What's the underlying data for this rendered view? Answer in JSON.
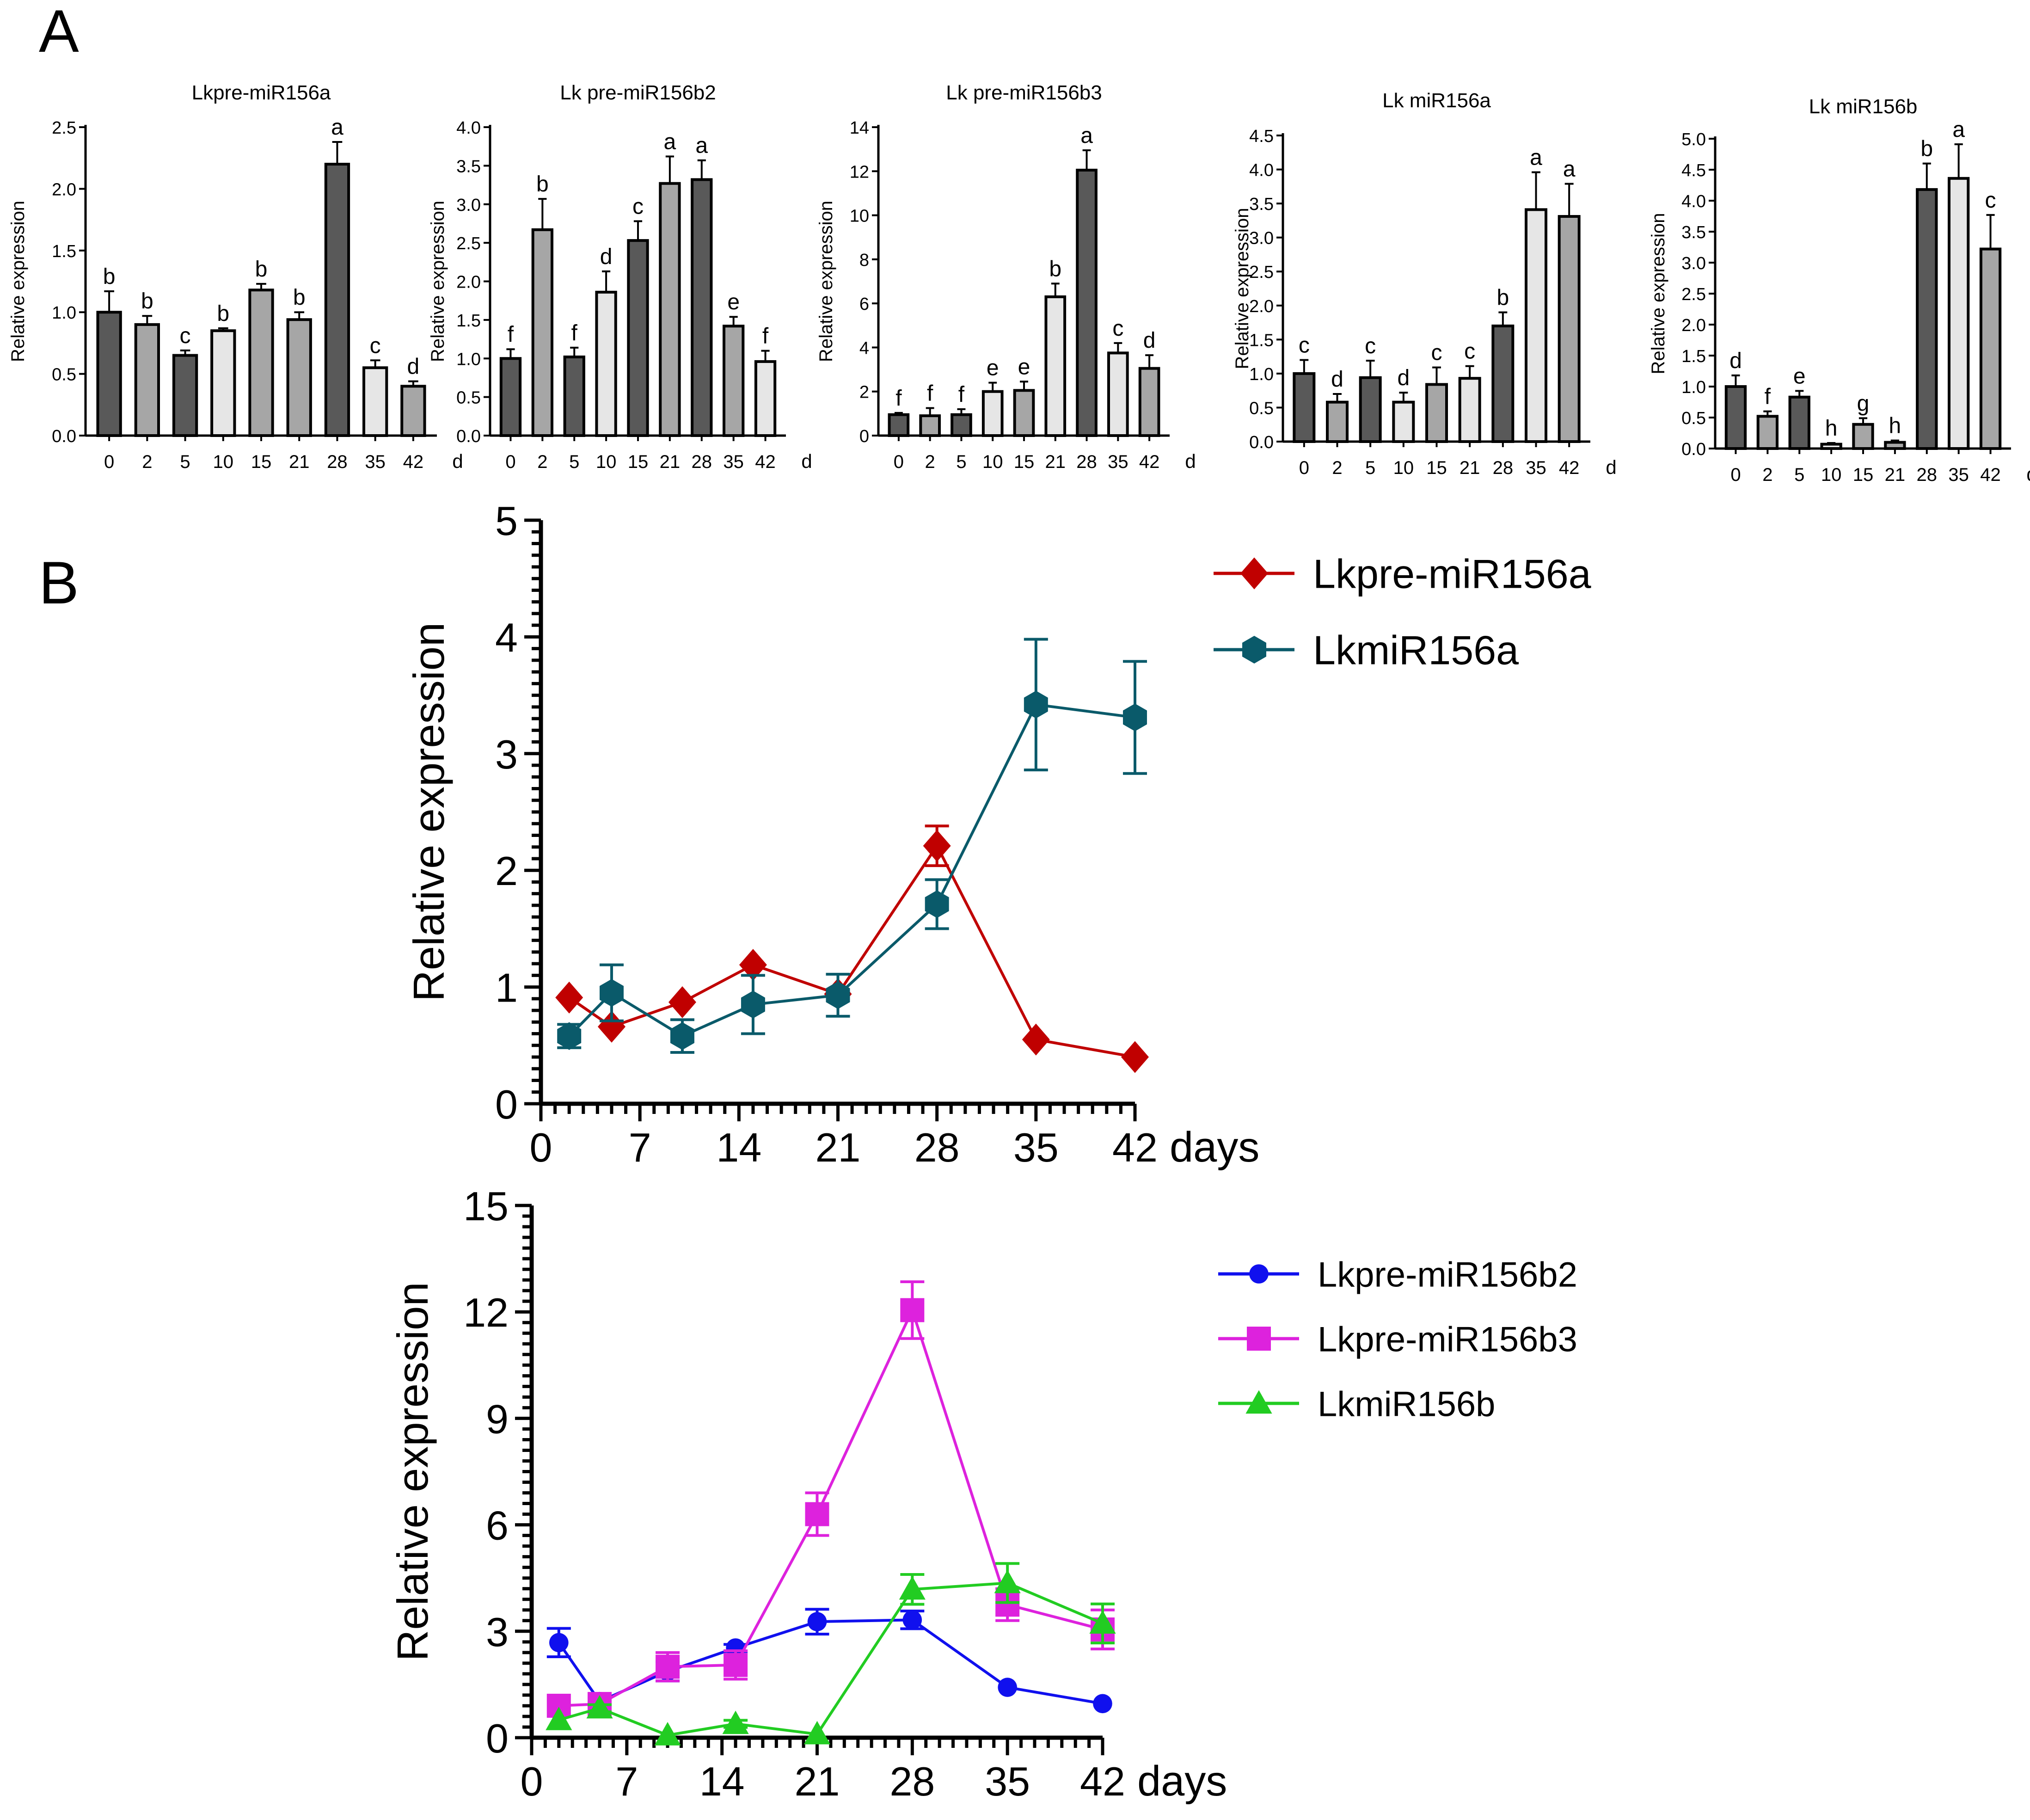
{
  "panels": {
    "a": "A",
    "b": "B"
  },
  "colors": {
    "dark": "#595959",
    "mid": "#a6a6a6",
    "light": "#e6e6e6",
    "stroke": "#000000",
    "red": "#c00000",
    "teal": "#0a5a6a",
    "blue": "#1010ee",
    "magenta": "#dd22dd",
    "green": "#22cc22"
  },
  "chart_data": [
    {
      "type": "bar",
      "panel": "A",
      "title": "Lkpre-miR156a",
      "ylabel": "Relative expression",
      "xunit": "d",
      "categories": [
        "0",
        "2",
        "5",
        "10",
        "15",
        "21",
        "28",
        "35",
        "42"
      ],
      "values": [
        1.0,
        0.9,
        0.65,
        0.85,
        1.18,
        0.94,
        2.2,
        0.55,
        0.4
      ],
      "errors": [
        0.17,
        0.07,
        0.04,
        0.02,
        0.05,
        0.06,
        0.18,
        0.06,
        0.04
      ],
      "letters": [
        "b",
        "b",
        "c",
        "b",
        "b",
        "b",
        "a",
        "c",
        "d"
      ],
      "shades": [
        "dark",
        "mid",
        "dark",
        "light",
        "mid",
        "mid",
        "dark",
        "light",
        "mid"
      ],
      "ylim": [
        0,
        2.5
      ],
      "ticks": [
        "0.0",
        "0.5",
        "1.0",
        "1.5",
        "2.0",
        "2.5"
      ]
    },
    {
      "type": "bar",
      "panel": "A",
      "title": "Lk pre-miR156b2",
      "ylabel": "Relative expression",
      "xunit": "d",
      "categories": [
        "0",
        "2",
        "5",
        "10",
        "15",
        "21",
        "28",
        "35",
        "42"
      ],
      "values": [
        1.0,
        2.67,
        1.02,
        1.86,
        2.53,
        3.27,
        3.32,
        1.42,
        0.96
      ],
      "errors": [
        0.12,
        0.4,
        0.12,
        0.27,
        0.25,
        0.35,
        0.25,
        0.12,
        0.14
      ],
      "letters": [
        "f",
        "b",
        "f",
        "d",
        "c",
        "a",
        "a",
        "e",
        "f"
      ],
      "shades": [
        "dark",
        "mid",
        "dark",
        "light",
        "dark",
        "mid",
        "dark",
        "mid",
        "light"
      ],
      "ylim": [
        0,
        4.0
      ],
      "ticks": [
        "0.0",
        "0.5",
        "1.0",
        "1.5",
        "2.0",
        "2.5",
        "3.0",
        "3.5",
        "4.0"
      ]
    },
    {
      "type": "bar",
      "panel": "A",
      "title": "Lk pre-miR156b3",
      "ylabel": "Relative expression",
      "xunit": "d",
      "categories": [
        "0",
        "2",
        "5",
        "10",
        "15",
        "21",
        "28",
        "35",
        "42"
      ],
      "values": [
        0.95,
        0.9,
        0.95,
        2.0,
        2.05,
        6.3,
        12.05,
        3.75,
        3.05
      ],
      "errors": [
        0.08,
        0.35,
        0.25,
        0.4,
        0.4,
        0.6,
        0.9,
        0.45,
        0.6
      ],
      "letters": [
        "f",
        "f",
        "f",
        "e",
        "e",
        "b",
        "a",
        "c",
        "d"
      ],
      "shades": [
        "dark",
        "mid",
        "dark",
        "light",
        "mid",
        "light",
        "dark",
        "light",
        "mid"
      ],
      "ylim": [
        0,
        14
      ],
      "ticks": [
        "0",
        "2",
        "4",
        "6",
        "8",
        "10",
        "12",
        "14"
      ]
    },
    {
      "type": "bar",
      "panel": "A",
      "title": "Lk miR156a",
      "ylabel": "Relative expression",
      "xunit": "d",
      "categories": [
        "0",
        "2",
        "5",
        "10",
        "15",
        "21",
        "28",
        "35",
        "42"
      ],
      "values": [
        1.0,
        0.58,
        0.94,
        0.58,
        0.84,
        0.93,
        1.7,
        3.41,
        3.31
      ],
      "errors": [
        0.2,
        0.12,
        0.25,
        0.14,
        0.25,
        0.18,
        0.2,
        0.55,
        0.48
      ],
      "letters": [
        "c",
        "d",
        "c",
        "d",
        "c",
        "c",
        "b",
        "a",
        "a"
      ],
      "shades": [
        "dark",
        "mid",
        "dark",
        "light",
        "mid",
        "light",
        "dark",
        "light",
        "mid"
      ],
      "ylim": [
        0,
        4.5
      ],
      "ticks": [
        "0.0",
        "0.5",
        "1.0",
        "1.5",
        "2.0",
        "2.5",
        "3.0",
        "3.5",
        "4.0",
        "4.5"
      ]
    },
    {
      "type": "bar",
      "panel": "A",
      "title": "Lk miR156b",
      "ylabel": "Relative expression",
      "xunit": "d",
      "categories": [
        "0",
        "2",
        "5",
        "10",
        "15",
        "21",
        "28",
        "35",
        "42"
      ],
      "values": [
        1.0,
        0.52,
        0.83,
        0.07,
        0.39,
        0.1,
        4.18,
        4.36,
        3.22
      ],
      "errors": [
        0.18,
        0.08,
        0.1,
        0.02,
        0.1,
        0.03,
        0.42,
        0.55,
        0.55
      ],
      "letters": [
        "d",
        "f",
        "e",
        "h",
        "g",
        "h",
        "b",
        "a",
        "c"
      ],
      "shades": [
        "dark",
        "mid",
        "dark",
        "light",
        "mid",
        "mid",
        "dark",
        "light",
        "mid"
      ],
      "ylim": [
        0,
        5.0
      ],
      "ticks": [
        "0.0",
        "0.5",
        "1.0",
        "1.5",
        "2.0",
        "2.5",
        "3.0",
        "3.5",
        "4.0",
        "4.5",
        "5.0"
      ]
    },
    {
      "type": "line",
      "panel": "B",
      "ylabel": "Relative expression",
      "xunit": "days",
      "xlim": [
        0,
        42
      ],
      "xticks": [
        "0",
        "7",
        "14",
        "21",
        "28",
        "35",
        "42"
      ],
      "ylim": [
        0,
        5
      ],
      "yticks": [
        "0",
        "1",
        "2",
        "3",
        "4",
        "5"
      ],
      "series": [
        {
          "name": "Lkpre-miR156a",
          "color": "red",
          "marker": "diamond",
          "x": [
            2,
            5,
            10,
            15,
            21,
            28,
            35,
            42
          ],
          "y": [
            0.91,
            0.66,
            0.87,
            1.19,
            0.94,
            2.21,
            0.55,
            0.4
          ],
          "err": [
            0,
            0,
            0,
            0,
            0,
            0.17,
            0,
            0
          ]
        },
        {
          "name": "LkmiR156a",
          "color": "teal",
          "marker": "hexagon",
          "x": [
            2,
            5,
            10,
            15,
            21,
            28,
            35,
            42
          ],
          "y": [
            0.58,
            0.95,
            0.58,
            0.85,
            0.93,
            1.71,
            3.42,
            3.31
          ],
          "err": [
            0.1,
            0.24,
            0.14,
            0.25,
            0.18,
            0.21,
            0.56,
            0.48
          ]
        }
      ]
    },
    {
      "type": "line",
      "panel": "B",
      "ylabel": "Relative expression",
      "xunit": "days",
      "xlim": [
        0,
        42
      ],
      "xticks": [
        "0",
        "7",
        "14",
        "21",
        "28",
        "35",
        "42"
      ],
      "ylim": [
        0,
        15
      ],
      "yticks": [
        "0",
        "3",
        "6",
        "9",
        "12",
        "15"
      ],
      "series": [
        {
          "name": "Lkpre-miR156b2",
          "color": "blue",
          "marker": "circle",
          "x": [
            2,
            5,
            10,
            15,
            21,
            28,
            35,
            42
          ],
          "y": [
            2.68,
            1.02,
            1.87,
            2.53,
            3.27,
            3.32,
            1.42,
            0.96
          ],
          "err": [
            0.4,
            0.1,
            0.27,
            0.1,
            0.35,
            0.25,
            0,
            0
          ]
        },
        {
          "name": "Lkpre-miR156b3",
          "color": "magenta",
          "marker": "square",
          "x": [
            2,
            5,
            10,
            15,
            21,
            28,
            35,
            42
          ],
          "y": [
            0.9,
            0.95,
            2.0,
            2.05,
            6.3,
            12.05,
            3.75,
            3.05
          ],
          "err": [
            0,
            0,
            0.4,
            0.4,
            0.6,
            0.8,
            0.45,
            0.55
          ]
        },
        {
          "name": "LkmiR156b",
          "color": "green",
          "marker": "triangle",
          "x": [
            2,
            5,
            10,
            15,
            21,
            28,
            35,
            42
          ],
          "y": [
            0.5,
            0.83,
            0.07,
            0.39,
            0.1,
            4.18,
            4.36,
            3.22
          ],
          "err": [
            0,
            0.1,
            0,
            0.1,
            0,
            0.42,
            0.55,
            0.55
          ]
        }
      ]
    }
  ]
}
